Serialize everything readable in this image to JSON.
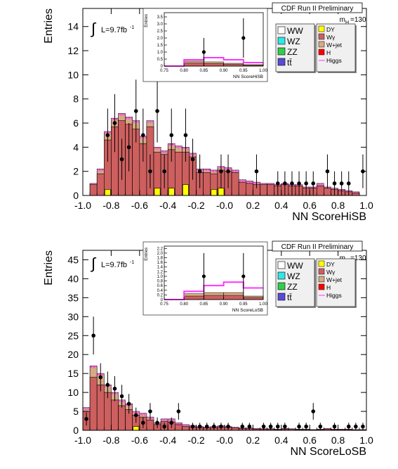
{
  "colors": {
    "WW": "#ffffff",
    "WZ": "#33e5e5",
    "ZZ": "#33cc4c",
    "ttbar": "#5a4bd6",
    "DY": "#ffff00",
    "Wgamma": "#cd5f5f",
    "Wjet": "#d6aa83",
    "H": "#ff0000",
    "Higgs": "#ff33ff",
    "frame": "#000000"
  },
  "legend_entries": [
    {
      "key": "WW",
      "label": "WW",
      "col": 0
    },
    {
      "key": "WZ",
      "label": "WZ",
      "col": 0
    },
    {
      "key": "ZZ",
      "label": "ZZ",
      "col": 0
    },
    {
      "key": "ttbar",
      "label": "tt̄",
      "col": 0
    },
    {
      "key": "DY",
      "label": "DY",
      "col": 1
    },
    {
      "key": "Wgamma",
      "label": "Wγ",
      "col": 1
    },
    {
      "key": "Wjet",
      "label": "W+jet",
      "col": 1
    },
    {
      "key": "H",
      "label": "H",
      "col": 1
    },
    {
      "key": "Higgs",
      "label": "Higgs",
      "col": 1
    }
  ],
  "chart_data": [
    {
      "type": "bar",
      "panel": "top",
      "header": "CDF Run II Preliminary",
      "mass_label": "m",
      "mass_sub": "H",
      "mass_value": "=130",
      "lumi_label": "L=9.7fb",
      "lumi_exp": "-1",
      "xlabel": "NN ScoreHiSB",
      "ylabel": "Entries",
      "xlim": [
        -1.0,
        1.0
      ],
      "ylim": [
        0,
        15.5
      ],
      "xticks": [
        -1.0,
        -0.8,
        -0.6,
        -0.4,
        -0.2,
        0.0,
        0.2,
        0.4,
        0.6,
        0.8,
        1.0
      ],
      "xtick_labels": [
        "-1.0",
        "-0.8",
        "-0.6",
        "-0.4",
        "-0.2",
        "-0.0",
        "0.2",
        "0.4",
        "0.6",
        "0.8",
        "1.0"
      ],
      "yticks": [
        0,
        2,
        4,
        6,
        8,
        10,
        12,
        14
      ],
      "ytick_labels": [
        "0",
        "2",
        "4",
        "6",
        "8",
        "10",
        "12",
        "14"
      ],
      "bins": [
        -1.0,
        -0.95,
        -0.9,
        -0.85,
        -0.8,
        -0.75,
        -0.7,
        -0.65,
        -0.6,
        -0.55,
        -0.5,
        -0.45,
        -0.4,
        -0.35,
        -0.3,
        -0.25,
        -0.2,
        -0.15,
        -0.1,
        -0.05,
        0.0,
        0.05,
        0.1,
        0.15,
        0.2,
        0.25,
        0.3,
        0.35,
        0.4,
        0.45,
        0.5,
        0.55,
        0.6,
        0.65,
        0.7,
        0.75,
        0.8,
        0.85,
        0.9,
        0.95,
        1.0
      ],
      "stack_total": [
        0,
        1.0,
        2.2,
        5.3,
        6.4,
        6.8,
        6.5,
        6.2,
        4.9,
        6.2,
        4.0,
        3.7,
        4.3,
        4.1,
        4.0,
        3.5,
        2.2,
        2.2,
        2.1,
        2.4,
        2.3,
        2.1,
        1.3,
        1.2,
        1.1,
        1.0,
        1.0,
        0.9,
        1.0,
        0.9,
        0.9,
        0.7,
        0.7,
        1.0,
        0.7,
        0.6,
        0.5,
        0.4,
        0.3,
        0
      ],
      "wgamma": [
        0,
        0.9,
        1.8,
        4.6,
        5.7,
        6.2,
        5.9,
        5.5,
        4.3,
        5.7,
        3.6,
        3.4,
        3.8,
        3.6,
        3.6,
        3.2,
        1.9,
        1.9,
        1.8,
        2.1,
        2.0,
        1.9,
        1.1,
        1.0,
        0.9,
        0.9,
        0.9,
        0.8,
        0.9,
        0.8,
        0.8,
        0.6,
        0.6,
        0.8,
        0.6,
        0.5,
        0.4,
        0.3,
        0.2,
        0
      ],
      "dy": [
        0,
        0,
        0,
        0.5,
        0,
        0,
        0,
        0,
        0,
        0,
        0.6,
        0,
        0,
        0,
        0,
        0,
        0,
        0,
        0.5,
        0.6,
        0,
        0,
        0,
        0,
        0,
        0,
        0,
        0,
        0,
        0,
        0,
        0,
        0,
        0,
        0,
        0,
        0,
        0,
        0,
        0
      ],
      "dy2": [
        0,
        0,
        0,
        0,
        0,
        0,
        0,
        0,
        0,
        0,
        0,
        0,
        0.6,
        0,
        0.9,
        0,
        0,
        0,
        0,
        0,
        0,
        0,
        0,
        0,
        0,
        0,
        0,
        0,
        0,
        0,
        0,
        0,
        0,
        0,
        0,
        0,
        0,
        0,
        0,
        0
      ],
      "data_x": [
        -0.825,
        -0.775,
        -0.725,
        -0.675,
        -0.625,
        -0.575,
        -0.525,
        -0.475,
        -0.425,
        -0.375,
        -0.325,
        -0.275,
        -0.225,
        -0.175,
        -0.125,
        -0.075,
        -0.025,
        0.025,
        0.075,
        0.125,
        0.175,
        0.225,
        0.275,
        0.325,
        0.375,
        0.425,
        0.475,
        0.525,
        0.575,
        0.625,
        0.675,
        0.725,
        0.775,
        0.825,
        0.875,
        0.925,
        0.975
      ],
      "data_y": [
        5,
        6,
        3,
        4,
        7,
        5,
        2,
        7,
        2,
        5,
        0,
        5,
        3,
        2,
        0,
        0,
        2,
        2,
        0,
        0,
        0,
        2,
        0,
        0,
        1,
        1,
        1,
        1,
        1,
        1,
        0,
        2,
        1,
        1,
        1,
        0,
        2
      ],
      "data_err": [
        2.2,
        2.4,
        1.7,
        2.0,
        2.6,
        2.2,
        1.4,
        2.6,
        1.4,
        2.2,
        0,
        2.2,
        1.7,
        1.4,
        0,
        0,
        1.4,
        1.4,
        0,
        0,
        0,
        1.4,
        0,
        0,
        1.0,
        1.0,
        1.0,
        1.0,
        1.0,
        1.0,
        0,
        1.4,
        1.0,
        1.0,
        1.0,
        0,
        1.4
      ],
      "inset": {
        "xlim": [
          0.75,
          1.0
        ],
        "ylim": [
          0,
          3.8
        ],
        "xticks": [
          0.75,
          0.8,
          0.85,
          0.9,
          0.95,
          1.0
        ],
        "xtick_labels": [
          "0.75",
          "0.80",
          "0.85",
          "0.90",
          "0.95",
          "1.00"
        ],
        "yticks": [
          0,
          0.5,
          1.0,
          1.5,
          2.0,
          2.5,
          3.0,
          3.5
        ],
        "ytick_labels": [
          "0",
          "0.5",
          "1.0",
          "1.5",
          "2.0",
          "2.5",
          "3.0",
          "3.5"
        ],
        "xlabel": "NN ScoreHiSB",
        "ylabel": "Entries",
        "bins": [
          0.75,
          0.8,
          0.85,
          0.9,
          0.95,
          1.0
        ],
        "stack_total": [
          0,
          0.35,
          0.3,
          0.2,
          0.1
        ],
        "higgs": [
          0,
          0.1,
          0.3,
          0.25,
          0.15
        ],
        "data_x": [
          0.85,
          0.95
        ],
        "data_y": [
          1,
          2
        ],
        "data_err": [
          1.0,
          1.4
        ]
      }
    },
    {
      "type": "bar",
      "panel": "bottom",
      "header": "CDF Run II Preliminary",
      "mass_label": "m",
      "mass_sub": "H",
      "mass_value": "=130",
      "lumi_label": "L=9.7fb",
      "lumi_exp": "-1",
      "xlabel": "NN ScoreLoSB",
      "ylabel": "Entries",
      "xlim": [
        -1.0,
        1.0
      ],
      "ylim": [
        0,
        47.5
      ],
      "xticks": [
        -1.0,
        -0.8,
        -0.6,
        -0.4,
        -0.2,
        0.0,
        0.2,
        0.4,
        0.6,
        0.8,
        1.0
      ],
      "xtick_labels": [
        "-1.0",
        "-0.8",
        "-0.6",
        "-0.4",
        "-0.2",
        "-0.0",
        "0.2",
        "0.4",
        "0.6",
        "0.8",
        "1.0"
      ],
      "yticks": [
        0,
        5,
        10,
        15,
        20,
        25,
        30,
        35,
        40,
        45
      ],
      "ytick_labels": [
        "0",
        "5",
        "10",
        "15",
        "20",
        "25",
        "30",
        "35",
        "40",
        "45"
      ],
      "bins": [
        -1.0,
        -0.95,
        -0.9,
        -0.85,
        -0.8,
        -0.75,
        -0.7,
        -0.65,
        -0.6,
        -0.55,
        -0.5,
        -0.45,
        -0.4,
        -0.35,
        -0.3,
        -0.25,
        -0.2,
        -0.15,
        -0.1,
        -0.05,
        0.0,
        0.05,
        0.1,
        0.15,
        0.2,
        0.25,
        0.3,
        0.35,
        0.4,
        0.45,
        0.5,
        0.55,
        0.6,
        0.65,
        0.7,
        0.75,
        0.8,
        0.85,
        0.9,
        0.95,
        1.0
      ],
      "stack_total": [
        6,
        17,
        15,
        12,
        10,
        8,
        7,
        5,
        4.5,
        3.5,
        2,
        3,
        3,
        2,
        1.5,
        1.2,
        1,
        0.8,
        1,
        1.2,
        1,
        0.8,
        0.6,
        0.6,
        0.5,
        0.4,
        0.4,
        0.3,
        0.5,
        0.4,
        0.3,
        0.3,
        0.2,
        0.3,
        0.5,
        0.3,
        0.3,
        0.3,
        0.2,
        0.2
      ],
      "wgamma": [
        5,
        14,
        12,
        10,
        8,
        6.5,
        5.5,
        4,
        3.5,
        2.7,
        1.5,
        2.3,
        2.2,
        1.5,
        1.0,
        0.9,
        0.7,
        0.6,
        0.7,
        0.9,
        0.8,
        0.6,
        0.4,
        0.4,
        0.3,
        0.3,
        0.3,
        0.2,
        0.3,
        0.3,
        0.2,
        0.2,
        0.1,
        0.2,
        0.3,
        0.2,
        0.2,
        0.2,
        0.1,
        0.1
      ],
      "dy": [
        0,
        0,
        0,
        0,
        0,
        0,
        0,
        1,
        0,
        0,
        0,
        0,
        0,
        0,
        0,
        0,
        0,
        0,
        0,
        0,
        0,
        0,
        0,
        0,
        0,
        0,
        0,
        0,
        0,
        0,
        0,
        0,
        0,
        0,
        0,
        0,
        0,
        0,
        0,
        0
      ],
      "data_x": [
        -0.975,
        -0.925,
        -0.875,
        -0.825,
        -0.775,
        -0.725,
        -0.675,
        -0.625,
        -0.575,
        -0.525,
        -0.475,
        -0.425,
        -0.375,
        -0.325,
        -0.275,
        -0.225,
        -0.175,
        -0.125,
        -0.075,
        -0.025,
        0.025,
        0.075,
        0.125,
        0.175,
        0.225,
        0.275,
        0.325,
        0.375,
        0.425,
        0.475,
        0.525,
        0.575,
        0.625,
        0.675,
        0.725,
        0.775,
        0.825,
        0.875,
        0.925,
        0.975
      ],
      "data_y": [
        3,
        25,
        14,
        12,
        11,
        9,
        7,
        4,
        2,
        5,
        2,
        1,
        2,
        5,
        0,
        1,
        1,
        1,
        1,
        1,
        1,
        0,
        1,
        1,
        0,
        1,
        1,
        1,
        1,
        0,
        1,
        1,
        5,
        1,
        0,
        1,
        0,
        1,
        1,
        1
      ],
      "data_err": [
        1.7,
        5.0,
        3.7,
        3.5,
        3.3,
        3.0,
        2.6,
        2.0,
        1.4,
        2.2,
        1.4,
        1.0,
        1.4,
        2.2,
        0,
        1.0,
        1.0,
        1.0,
        1.0,
        1.0,
        1.0,
        0,
        1.0,
        1.0,
        0,
        1.0,
        1.0,
        1.0,
        1.0,
        0,
        1.0,
        1.0,
        2.2,
        1.0,
        0,
        1.0,
        0,
        1.0,
        1.0,
        1.0
      ],
      "inset": {
        "xlim": [
          0.75,
          1.0
        ],
        "ylim": [
          0,
          2.3
        ],
        "xticks": [
          0.75,
          0.8,
          0.85,
          0.9,
          0.95,
          1.0
        ],
        "xtick_labels": [
          "0.75",
          "0.80",
          "0.85",
          "0.90",
          "0.95",
          "1.00"
        ],
        "yticks": [
          0,
          0.2,
          0.4,
          0.6,
          0.8,
          1.0,
          1.2,
          1.4,
          1.6,
          1.8,
          2.0,
          2.2
        ],
        "ytick_labels": [
          "0",
          "0.2",
          "0.4",
          "0.6",
          "0.8",
          "1.0",
          "1.2",
          "1.4",
          "1.6",
          "1.8",
          "2.0",
          "2.2"
        ],
        "xlabel": "NN ScoreLoSB",
        "ylabel": "Entries",
        "bins": [
          0.75,
          0.8,
          0.85,
          0.9,
          0.95,
          1.0
        ],
        "stack_total": [
          0,
          0.25,
          0.3,
          0.3,
          0.15
        ],
        "higgs": [
          0,
          0.1,
          0.3,
          0.45,
          0.35
        ],
        "data_x": [
          0.85,
          0.95
        ],
        "data_y": [
          1,
          1
        ],
        "data_err": [
          1.0,
          1.0
        ]
      }
    }
  ]
}
